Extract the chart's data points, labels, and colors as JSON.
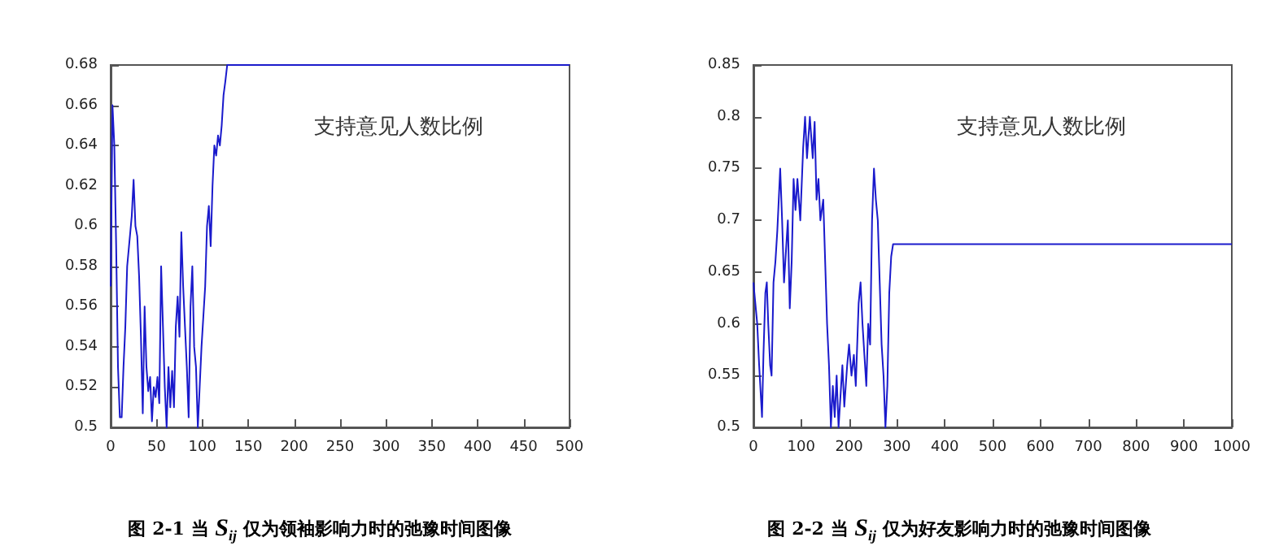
{
  "chart_data": [
    {
      "type": "line",
      "title": "图 2-1 当 S$_{ij}$ 仅为领袖影响力时的弛豫时间图像",
      "annotations": [
        "支持意见人数比例"
      ],
      "marker": "none",
      "grid": false,
      "xlim": [
        0,
        500
      ],
      "xticks": [
        0,
        50,
        100,
        150,
        200,
        250,
        300,
        350,
        400,
        450,
        500
      ],
      "ylim": [
        0.5,
        0.68
      ],
      "yticks": [
        0.5,
        0.52,
        0.54,
        0.56,
        0.58,
        0.6,
        0.62,
        0.64,
        0.66,
        0.68
      ],
      "series": [
        {
          "color": "#1a1acc",
          "x": [
            0,
            2,
            4,
            6,
            8,
            10,
            12,
            14,
            16,
            18,
            20,
            23,
            25,
            27,
            29,
            31,
            33,
            35,
            37,
            39,
            41,
            43,
            45,
            47,
            49,
            51,
            53,
            55,
            57,
            59,
            61,
            63,
            65,
            67,
            69,
            71,
            73,
            75,
            77,
            79,
            81,
            83,
            85,
            87,
            89,
            91,
            93,
            95,
            97,
            99,
            101,
            103,
            105,
            107,
            109,
            111,
            113,
            115,
            117,
            119,
            121,
            123,
            125,
            127,
            500
          ],
          "values": [
            0.57,
            0.66,
            0.64,
            0.59,
            0.53,
            0.505,
            0.505,
            0.53,
            0.55,
            0.58,
            0.59,
            0.605,
            0.623,
            0.6,
            0.595,
            0.575,
            0.545,
            0.507,
            0.56,
            0.53,
            0.518,
            0.525,
            0.503,
            0.52,
            0.515,
            0.525,
            0.512,
            0.58,
            0.55,
            0.52,
            0.5,
            0.53,
            0.51,
            0.528,
            0.51,
            0.55,
            0.565,
            0.545,
            0.597,
            0.57,
            0.55,
            0.53,
            0.505,
            0.56,
            0.58,
            0.54,
            0.53,
            0.5,
            0.52,
            0.54,
            0.555,
            0.57,
            0.6,
            0.61,
            0.59,
            0.62,
            0.64,
            0.635,
            0.645,
            0.64,
            0.65,
            0.665,
            0.672,
            0.68,
            0.68
          ]
        }
      ]
    },
    {
      "type": "line",
      "title": "图 2-2 当 S$_{ij}$ 仅为好友影响力时的弛豫时间图像",
      "annotations": [
        "支持意见人数比例"
      ],
      "marker": "none",
      "grid": false,
      "xlim": [
        0,
        1000
      ],
      "xticks": [
        0,
        100,
        200,
        300,
        400,
        500,
        600,
        700,
        800,
        900,
        1000
      ],
      "ylim": [
        0.5,
        0.85
      ],
      "yticks": [
        0.5,
        0.55,
        0.6,
        0.65,
        0.7,
        0.75,
        0.8,
        0.85
      ],
      "series": [
        {
          "color": "#1a1acc",
          "x": [
            0,
            4,
            8,
            12,
            15,
            18,
            21,
            25,
            28,
            31,
            35,
            38,
            42,
            46,
            50,
            56,
            60,
            64,
            68,
            72,
            76,
            80,
            84,
            88,
            92,
            98,
            104,
            108,
            112,
            118,
            124,
            128,
            132,
            136,
            140,
            146,
            150,
            154,
            158,
            162,
            166,
            170,
            174,
            178,
            182,
            186,
            190,
            196,
            200,
            205,
            210,
            214,
            220,
            224,
            228,
            232,
            236,
            240,
            244,
            248,
            252,
            256,
            260,
            264,
            268,
            272,
            276,
            280,
            284,
            288,
            292,
            1000
          ],
          "values": [
            0.64,
            0.62,
            0.6,
            0.56,
            0.535,
            0.51,
            0.57,
            0.63,
            0.64,
            0.6,
            0.56,
            0.55,
            0.64,
            0.66,
            0.69,
            0.75,
            0.7,
            0.64,
            0.67,
            0.7,
            0.615,
            0.66,
            0.74,
            0.71,
            0.74,
            0.7,
            0.77,
            0.8,
            0.76,
            0.8,
            0.76,
            0.795,
            0.72,
            0.74,
            0.7,
            0.72,
            0.66,
            0.6,
            0.56,
            0.5,
            0.54,
            0.51,
            0.55,
            0.5,
            0.53,
            0.56,
            0.52,
            0.56,
            0.58,
            0.55,
            0.57,
            0.54,
            0.62,
            0.64,
            0.6,
            0.57,
            0.54,
            0.6,
            0.58,
            0.7,
            0.75,
            0.72,
            0.7,
            0.64,
            0.58,
            0.55,
            0.5,
            0.54,
            0.63,
            0.665,
            0.677,
            0.677
          ]
        }
      ]
    }
  ]
}
